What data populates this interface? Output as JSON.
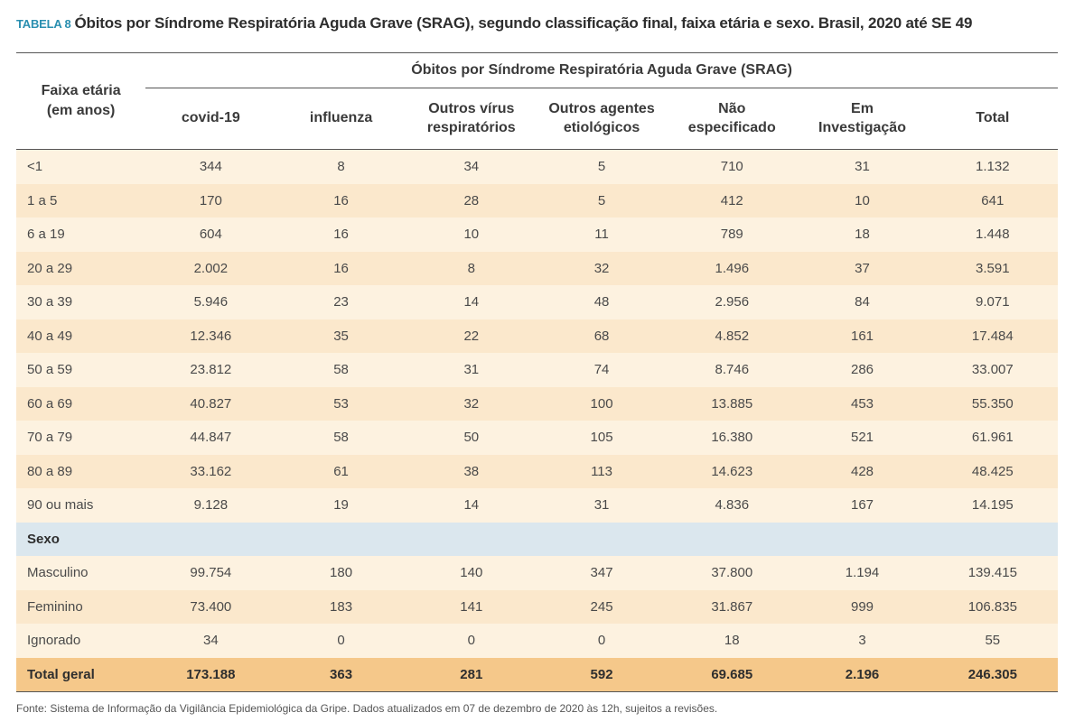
{
  "title": {
    "label": "TABELA 8",
    "text": "Óbitos por Síndrome Respiratória Aguda Grave (SRAG), segundo classificação final, faixa etária e sexo. Brasil, 2020 até SE 49"
  },
  "table": {
    "row_header_line1": "Faixa etária",
    "row_header_line2": "(em anos)",
    "group_header": "Óbitos por Síndrome Respiratória Aguda Grave (SRAG)",
    "columns": [
      {
        "l1": "covid-19",
        "l2": ""
      },
      {
        "l1": "influenza",
        "l2": ""
      },
      {
        "l1": "Outros vírus",
        "l2": "respiratórios"
      },
      {
        "l1": "Outros agentes",
        "l2": "etiológicos"
      },
      {
        "l1": "Não",
        "l2": "especificado"
      },
      {
        "l1": "Em",
        "l2": "Investigação"
      },
      {
        "l1": "Total",
        "l2": ""
      }
    ],
    "age_rows": [
      {
        "label": "<1",
        "values": [
          "344",
          "8",
          "34",
          "5",
          "710",
          "31",
          "1.132"
        ]
      },
      {
        "label": "1 a 5",
        "values": [
          "170",
          "16",
          "28",
          "5",
          "412",
          "10",
          "641"
        ]
      },
      {
        "label": "6 a 19",
        "values": [
          "604",
          "16",
          "10",
          "11",
          "789",
          "18",
          "1.448"
        ]
      },
      {
        "label": "20 a 29",
        "values": [
          "2.002",
          "16",
          "8",
          "32",
          "1.496",
          "37",
          "3.591"
        ]
      },
      {
        "label": "30 a 39",
        "values": [
          "5.946",
          "23",
          "14",
          "48",
          "2.956",
          "84",
          "9.071"
        ]
      },
      {
        "label": "40 a 49",
        "values": [
          "12.346",
          "35",
          "22",
          "68",
          "4.852",
          "161",
          "17.484"
        ]
      },
      {
        "label": "50 a 59",
        "values": [
          "23.812",
          "58",
          "31",
          "74",
          "8.746",
          "286",
          "33.007"
        ]
      },
      {
        "label": "60 a 69",
        "values": [
          "40.827",
          "53",
          "32",
          "100",
          "13.885",
          "453",
          "55.350"
        ]
      },
      {
        "label": "70 a 79",
        "values": [
          "44.847",
          "58",
          "50",
          "105",
          "16.380",
          "521",
          "61.961"
        ]
      },
      {
        "label": "80 a 89",
        "values": [
          "33.162",
          "61",
          "38",
          "113",
          "14.623",
          "428",
          "48.425"
        ]
      },
      {
        "label": "90 ou mais",
        "values": [
          "9.128",
          "19",
          "14",
          "31",
          "4.836",
          "167",
          "14.195"
        ]
      }
    ],
    "sex_section_label": "Sexo",
    "sex_rows": [
      {
        "label": "Masculino",
        "values": [
          "99.754",
          "180",
          "140",
          "347",
          "37.800",
          "1.194",
          "139.415"
        ]
      },
      {
        "label": "Feminino",
        "values": [
          "73.400",
          "183",
          "141",
          "245",
          "31.867",
          "999",
          "106.835"
        ]
      },
      {
        "label": "Ignorado",
        "values": [
          "34",
          "0",
          "0",
          "0",
          "18",
          "3",
          "55"
        ]
      }
    ],
    "total_row": {
      "label": "Total geral",
      "values": [
        "173.188",
        "363",
        "281",
        "592",
        "69.685",
        "2.196",
        "246.305"
      ]
    }
  },
  "source": "Fonte: Sistema de Informação da Vigilância Epidemiológica da Gripe. Dados atualizados em 07 de dezembro de 2020 às 12h, sujeitos a revisões."
}
